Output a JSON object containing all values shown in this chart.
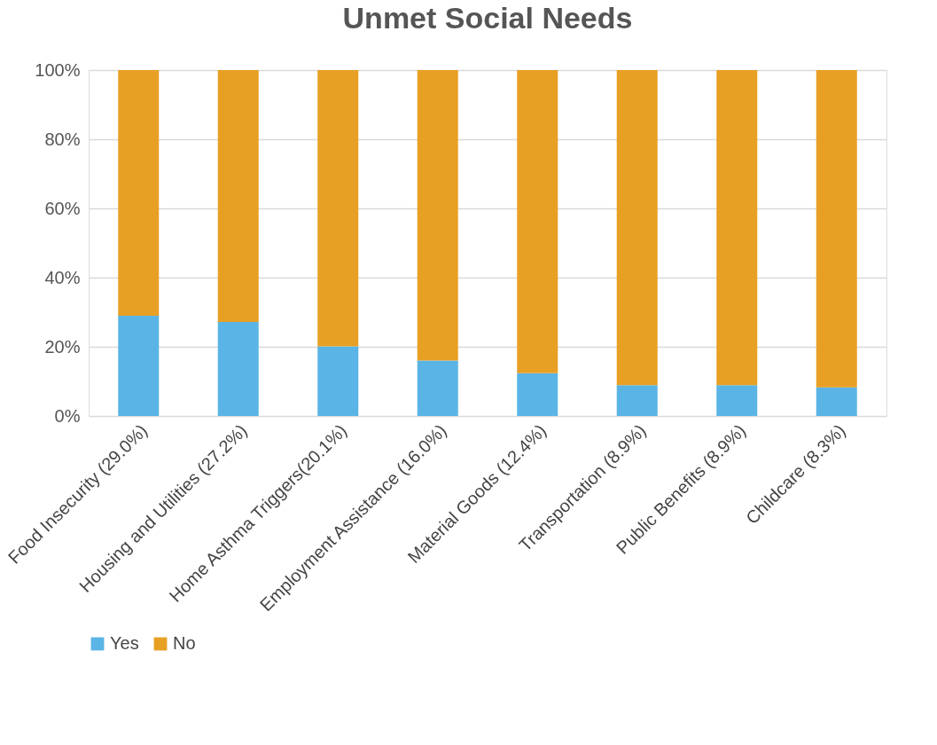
{
  "chart_data": {
    "type": "bar",
    "title": "Unmet Social Needs",
    "stacked": true,
    "categories": [
      "Food Insecurity (29.0%)",
      "Housing and Utilities  (27.2%)",
      "Home Asthma Triggers(20.1%)",
      "Employment  Assistance (16.0%)",
      "Material  Goods (12.4%)",
      "Transportation  (8.9%)",
      "Public Benefits (8.9%)",
      "Childcare (8.3%)"
    ],
    "series": [
      {
        "name": "Yes",
        "color": "#5ab4e5",
        "values": [
          29.0,
          27.2,
          20.1,
          16.0,
          12.4,
          8.9,
          8.9,
          8.3
        ]
      },
      {
        "name": "No",
        "color": "#e8a024",
        "values": [
          71.0,
          72.8,
          79.9,
          84.0,
          87.6,
          91.1,
          91.1,
          91.7
        ]
      }
    ],
    "ylim": [
      0,
      100
    ],
    "yticks": [
      {
        "value": 0,
        "label": "0%"
      },
      {
        "value": 20,
        "label": "20%"
      },
      {
        "value": 40,
        "label": "40%"
      },
      {
        "value": 60,
        "label": "60%"
      },
      {
        "value": 80,
        "label": "80%"
      },
      {
        "value": 100,
        "label": "100%"
      }
    ],
    "grid": "y",
    "legend": "bottom"
  }
}
